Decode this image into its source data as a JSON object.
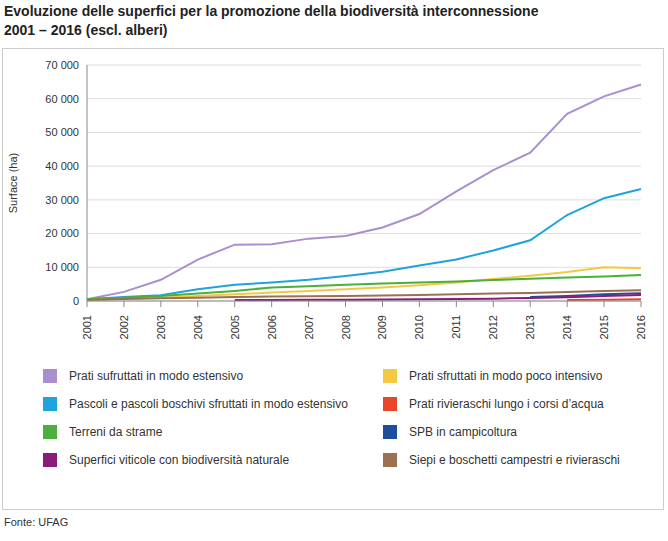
{
  "chart_data": {
    "type": "line",
    "title": "Evoluzione delle superfici per la promozione della biodiversità interconnessione\n2001 – 2016 (escl. alberi)",
    "y_label": "Surface (ha)",
    "source": "Fonte: UFAG",
    "categories": [
      "2001",
      "2002",
      "2003",
      "2004",
      "2005",
      "2006",
      "2007",
      "2008",
      "2009",
      "2010",
      "2011",
      "2012",
      "2013",
      "2014",
      "2015",
      "2016"
    ],
    "ylim": [
      0,
      70000
    ],
    "yticks": [
      0,
      {
        "value": 10000,
        "label": "10 000"
      },
      {
        "value": 20000,
        "label": "20 000"
      },
      {
        "value": 30000,
        "label": "30 000"
      },
      {
        "value": 40000,
        "label": "40 000"
      },
      {
        "value": 50000,
        "label": "50 000"
      },
      {
        "value": 60000,
        "label": "60 000"
      },
      {
        "value": 70000,
        "label": "70 000"
      }
    ],
    "grid": true,
    "series": [
      {
        "name": "Prati sufruttati in modo estensivo",
        "color": "#a98fd0",
        "values": [
          500,
          2700,
          6300,
          12300,
          16700,
          16800,
          18500,
          19300,
          21800,
          25800,
          32500,
          38800,
          44000,
          55500,
          60700,
          64200
        ]
      },
      {
        "name": "Prati sfruttati in modo poco intensivo",
        "color": "#f5c842",
        "values": [
          300,
          700,
          1000,
          1500,
          2000,
          2500,
          3000,
          3500,
          4000,
          4700,
          5500,
          6500,
          7500,
          8600,
          10000,
          9700
        ]
      },
      {
        "name": "Pascoli e pascoli boschivi sfruttati in modo estensivo",
        "color": "#1ea3dc",
        "values": [
          500,
          1200,
          1700,
          3500,
          4800,
          5500,
          6300,
          7400,
          8700,
          10500,
          12300,
          15000,
          18000,
          25500,
          30500,
          33200
        ]
      },
      {
        "name": "Prati rivieraschi lungo i corsi d’acqua",
        "color": "#e8462a",
        "values": [
          null,
          null,
          null,
          null,
          null,
          null,
          null,
          null,
          null,
          null,
          null,
          null,
          null,
          300,
          400,
          500
        ]
      },
      {
        "name": "Terreni da strame",
        "color": "#4caf3c",
        "values": [
          500,
          1000,
          1500,
          2200,
          3000,
          4000,
          4400,
          4800,
          5200,
          5500,
          5800,
          6200,
          6600,
          7000,
          7300,
          7700
        ]
      },
      {
        "name": "SPB in campicoltura",
        "color": "#1f4e9c",
        "values": [
          null,
          null,
          null,
          null,
          null,
          null,
          null,
          null,
          null,
          null,
          null,
          null,
          1200,
          1500,
          2000,
          2300
        ]
      },
      {
        "name": "Superfici viticole con biodiversità naturale",
        "color": "#8b1c7c",
        "values": [
          null,
          null,
          null,
          null,
          300,
          300,
          350,
          400,
          450,
          500,
          600,
          700,
          900,
          1100,
          1500,
          1800
        ]
      },
      {
        "name": "Siepi e boschetti campestri e rivieraschi",
        "color": "#9b7151",
        "values": [
          300,
          600,
          800,
          1000,
          1200,
          1300,
          1400,
          1500,
          1600,
          1800,
          2000,
          2200,
          2400,
          2700,
          3000,
          3200
        ]
      }
    ]
  }
}
